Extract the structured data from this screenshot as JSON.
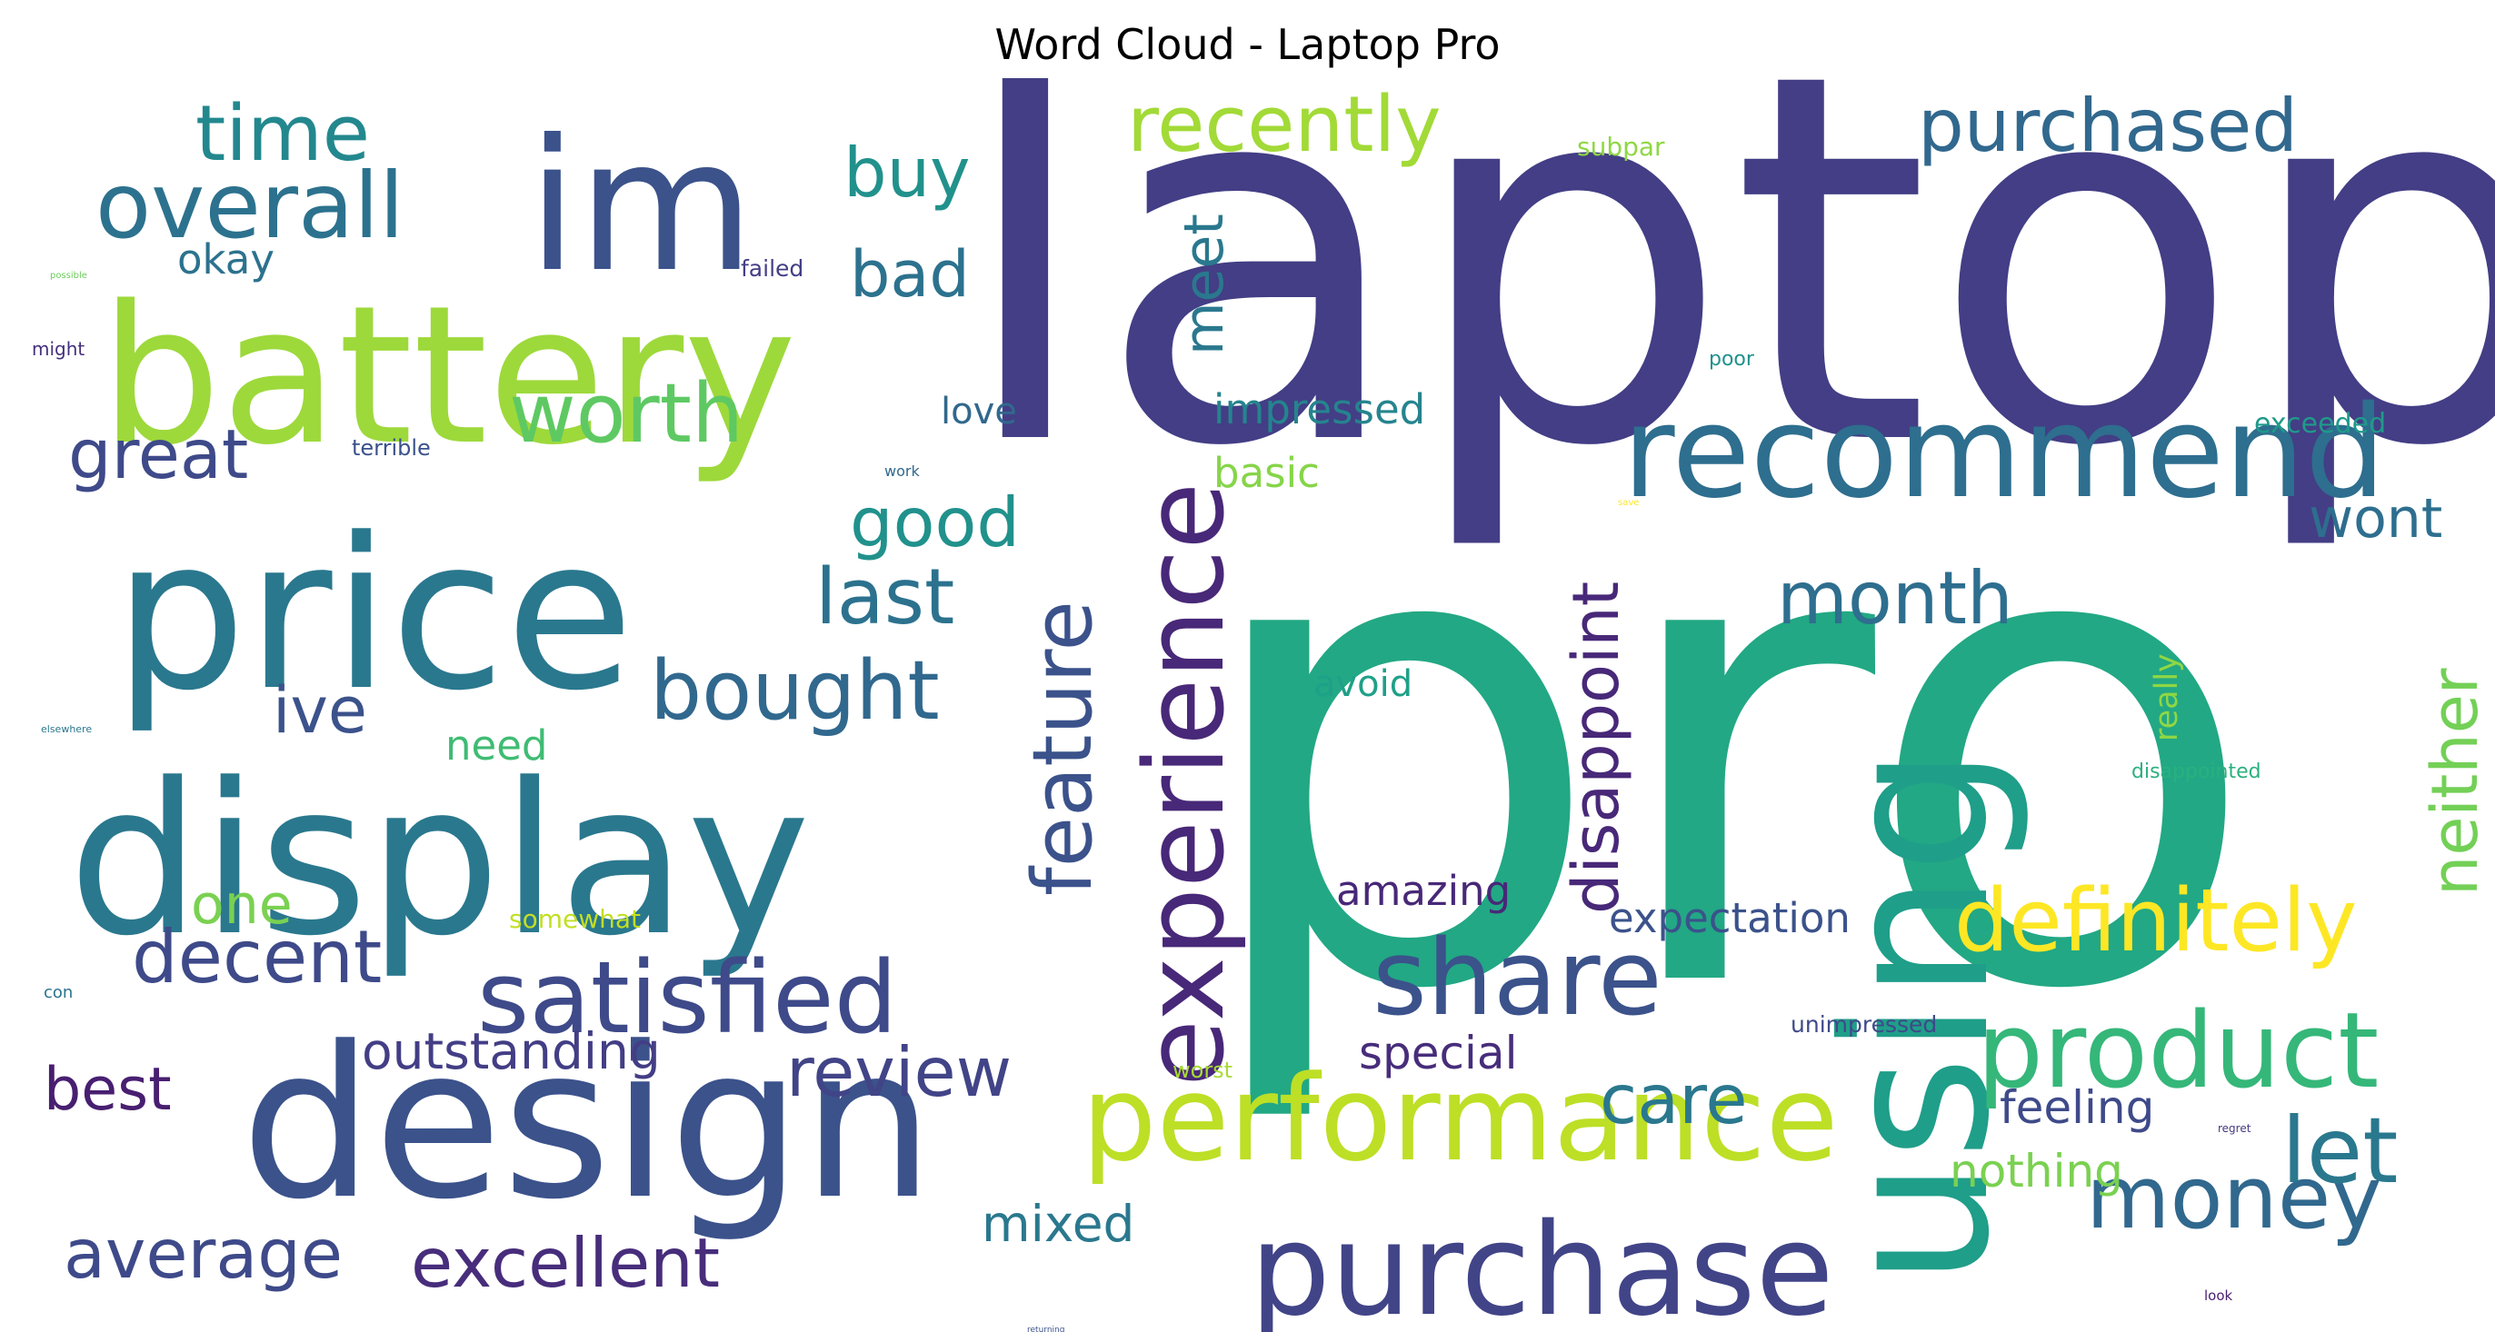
{
  "title": "Word Cloud - Laptop Pro",
  "words": [
    {
      "text": "laptop",
      "color": "#433e85"
    },
    {
      "text": "pro",
      "color": "#22a884"
    },
    {
      "text": "im",
      "color": "#3b528b"
    },
    {
      "text": "battery",
      "color": "#9dd93b"
    },
    {
      "text": "price",
      "color": "#2a788e"
    },
    {
      "text": "display",
      "color": "#2a788e"
    },
    {
      "text": "design",
      "color": "#3b528b"
    },
    {
      "text": "using",
      "color": "#1f9e89"
    },
    {
      "text": "recommend",
      "color": "#2e6e8e"
    },
    {
      "text": "experience",
      "color": "#482878"
    },
    {
      "text": "performance",
      "color": "#bddf26"
    },
    {
      "text": "purchase",
      "color": "#414487"
    },
    {
      "text": "satisfied",
      "color": "#3e4a89"
    },
    {
      "text": "definitely",
      "color": "#fde725"
    },
    {
      "text": "product",
      "color": "#35b779"
    },
    {
      "text": "share",
      "color": "#3b528b"
    },
    {
      "text": "overall",
      "color": "#2c728e"
    },
    {
      "text": "time",
      "color": "#23888e"
    },
    {
      "text": "purchased",
      "color": "#31688e"
    },
    {
      "text": "recently",
      "color": "#a2da37"
    },
    {
      "text": "bought",
      "color": "#31688e"
    },
    {
      "text": "feature",
      "color": "#3b528b"
    },
    {
      "text": "money",
      "color": "#31688e"
    },
    {
      "text": "review",
      "color": "#414487"
    },
    {
      "text": "decent",
      "color": "#3e4a89"
    },
    {
      "text": "month",
      "color": "#2e6e8e"
    },
    {
      "text": "worth",
      "color": "#5ec962"
    },
    {
      "text": "disappoint",
      "color": "#482878"
    },
    {
      "text": "buy",
      "color": "#21918c"
    },
    {
      "text": "last",
      "color": "#2c728e"
    },
    {
      "text": "let",
      "color": "#2a788e"
    },
    {
      "text": "excellent",
      "color": "#472d7b"
    },
    {
      "text": "average",
      "color": "#3e4a89"
    },
    {
      "text": "great",
      "color": "#3e4a89"
    },
    {
      "text": "good",
      "color": "#21918c"
    },
    {
      "text": "care",
      "color": "#2a788e"
    },
    {
      "text": "neither",
      "color": "#73d056"
    },
    {
      "text": "meet",
      "color": "#2a788e"
    },
    {
      "text": "ive",
      "color": "#3b528b"
    },
    {
      "text": "bad",
      "color": "#2c728e"
    },
    {
      "text": "wont",
      "color": "#2e6e8e"
    },
    {
      "text": "best",
      "color": "#481f70"
    },
    {
      "text": "outstanding",
      "color": "#433e85"
    },
    {
      "text": "one",
      "color": "#7ad151"
    },
    {
      "text": "expectation",
      "color": "#3b528b"
    },
    {
      "text": "special",
      "color": "#472d7b"
    },
    {
      "text": "feeling",
      "color": "#3e4a89"
    },
    {
      "text": "nothing",
      "color": "#7ad151"
    },
    {
      "text": "mixed",
      "color": "#2a788e"
    },
    {
      "text": "amazing",
      "color": "#482878"
    },
    {
      "text": "impressed",
      "color": "#25848e"
    },
    {
      "text": "basic",
      "color": "#86d549"
    },
    {
      "text": "okay",
      "color": "#2c728e"
    },
    {
      "text": "love",
      "color": "#31688e"
    },
    {
      "text": "need",
      "color": "#3fbc73"
    },
    {
      "text": "avoid",
      "color": "#1fa088"
    },
    {
      "text": "somewhat",
      "color": "#c2df23"
    },
    {
      "text": "really",
      "color": "#8fd744"
    },
    {
      "text": "exceeded",
      "color": "#1f9a8a"
    },
    {
      "text": "disappointed",
      "color": "#2ab07f"
    },
    {
      "text": "unimpressed",
      "color": "#3e4a89"
    },
    {
      "text": "subpar",
      "color": "#8fd744"
    },
    {
      "text": "failed",
      "color": "#433e85"
    },
    {
      "text": "terrible",
      "color": "#3b528b"
    },
    {
      "text": "poor",
      "color": "#21918c"
    },
    {
      "text": "worst",
      "color": "#a8db34"
    },
    {
      "text": "might",
      "color": "#46307e"
    },
    {
      "text": "work",
      "color": "#31688e"
    },
    {
      "text": "regret",
      "color": "#453882"
    },
    {
      "text": "con",
      "color": "#2c728e"
    },
    {
      "text": "possible",
      "color": "#6ccd5a"
    },
    {
      "text": "elsewhere",
      "color": "#2a788e"
    },
    {
      "text": "save",
      "color": "#fde725"
    },
    {
      "text": "returning",
      "color": "#3b528b"
    },
    {
      "text": "look",
      "color": "#481f70"
    }
  ]
}
